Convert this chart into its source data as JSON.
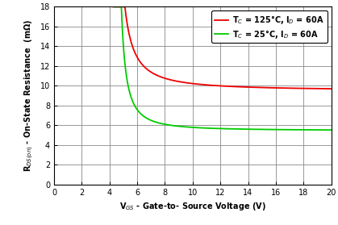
{
  "xlabel": "V$_{GS}$ - Gate-to- Source Voltage (V)",
  "ylabel": "R$_{DS(on)}$ - On-State Resistance  (mΩ)",
  "xlim": [
    0,
    20
  ],
  "ylim": [
    0,
    18
  ],
  "xticks": [
    0,
    2,
    4,
    6,
    8,
    10,
    12,
    14,
    16,
    18,
    20
  ],
  "yticks": [
    0,
    2,
    4,
    6,
    8,
    10,
    12,
    14,
    16,
    18
  ],
  "green_color": "#00CC00",
  "red_color": "#EE0000",
  "green_label": "T$_C$ = 25°C, I$_D$ = 60A",
  "red_label": "T$_C$ = 125°C, I$_D$ = 60A",
  "green_asymptote": 5.45,
  "red_asymptote": 9.5,
  "green_vth": 4.35,
  "red_vth": 4.25,
  "green_k": 4.5,
  "red_k": 7.0,
  "green_exp": 1.5,
  "red_exp": 1.3,
  "background_color": "#ffffff",
  "grid_color": "#888888",
  "label_fontsize": 7.0,
  "tick_fontsize": 7.0,
  "legend_fontsize": 7.0
}
